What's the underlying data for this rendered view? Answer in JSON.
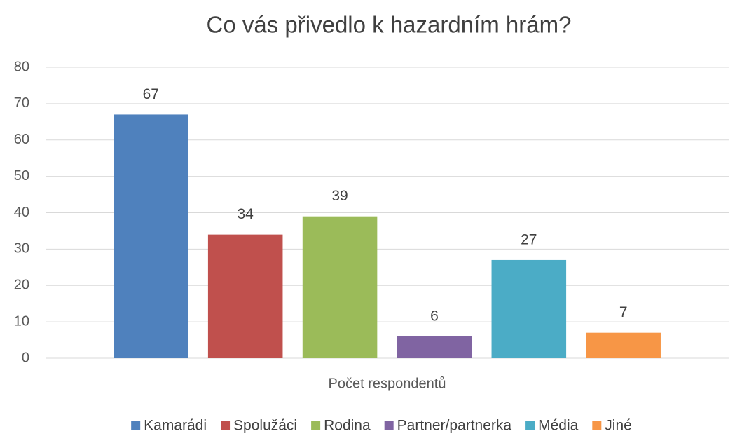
{
  "chart_data": {
    "type": "bar",
    "title": "Co vás přivedlo k hazardním hrám?",
    "categories": [
      "Počet respondentů"
    ],
    "series": [
      {
        "name": "Kamarádi",
        "color": "#4f81bd",
        "values": [
          67
        ]
      },
      {
        "name": "Spolužáci",
        "color": "#c0504d",
        "values": [
          34
        ]
      },
      {
        "name": "Rodina",
        "color": "#9bbb59",
        "values": [
          39
        ]
      },
      {
        "name": "Partner/partnerka",
        "color": "#8064a2",
        "values": [
          6
        ]
      },
      {
        "name": "Média",
        "color": "#4bacc6",
        "values": [
          27
        ]
      },
      {
        "name": "Jiné",
        "color": "#f79646",
        "values": [
          7
        ]
      }
    ],
    "ylim": [
      0,
      80
    ],
    "yticks": [
      0,
      10,
      20,
      30,
      40,
      50,
      60,
      70,
      80
    ],
    "grid": true,
    "legend": "bottom"
  }
}
